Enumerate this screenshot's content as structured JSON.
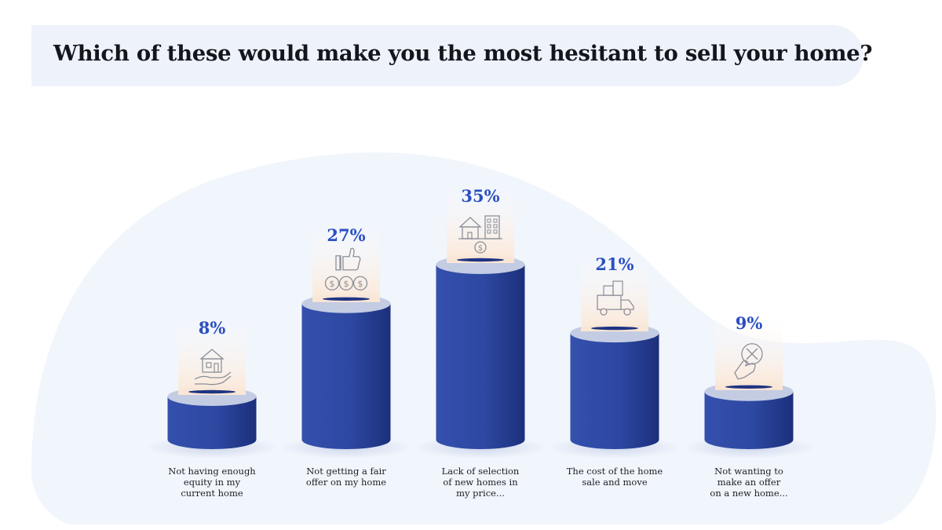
{
  "header": {
    "title": "Which of these would make you the most hesitant to sell your home?"
  },
  "colors": {
    "bar_front": "#2f4aa4",
    "bar_dark": "#1f3383",
    "bar_top": "#c3cce3",
    "value_text": "#2a4fc0",
    "background_blob": "#f1f5fc",
    "title_banner": "#eef3fb",
    "icon_card": "#fdeee0",
    "icon_stroke": "#8c8f99"
  },
  "chart_data": {
    "type": "bar",
    "title": "Which of these would make you the most hesitant to sell your home?",
    "categories": [
      "Not having enough equity in my current home",
      "Not getting a fair offer on my home",
      "Lack of selection of new homes in my price...",
      "The cost of the home sale and move",
      "Not wanting to make an offer on a new home..."
    ],
    "category_lines": [
      [
        "Not having enough",
        "equity in my",
        "current home"
      ],
      [
        "Not getting a fair",
        "offer on my home"
      ],
      [
        "Lack of selection",
        "of new homes in",
        "my price..."
      ],
      [
        "The cost of the home",
        "sale and move"
      ],
      [
        "Not wanting to",
        "make an offer",
        "on a new home..."
      ]
    ],
    "values": [
      8,
      27,
      35,
      21,
      9
    ],
    "value_labels": [
      "8%",
      "27%",
      "35%",
      "21%",
      "9%"
    ],
    "icons": [
      "house-in-hand-icon",
      "thumbs-up-money-icon",
      "house-building-dollar-icon",
      "moving-truck-icon",
      "hand-x-icon"
    ],
    "unit": "%",
    "ylim": [
      0,
      35
    ],
    "grid": false,
    "legend": "none"
  }
}
